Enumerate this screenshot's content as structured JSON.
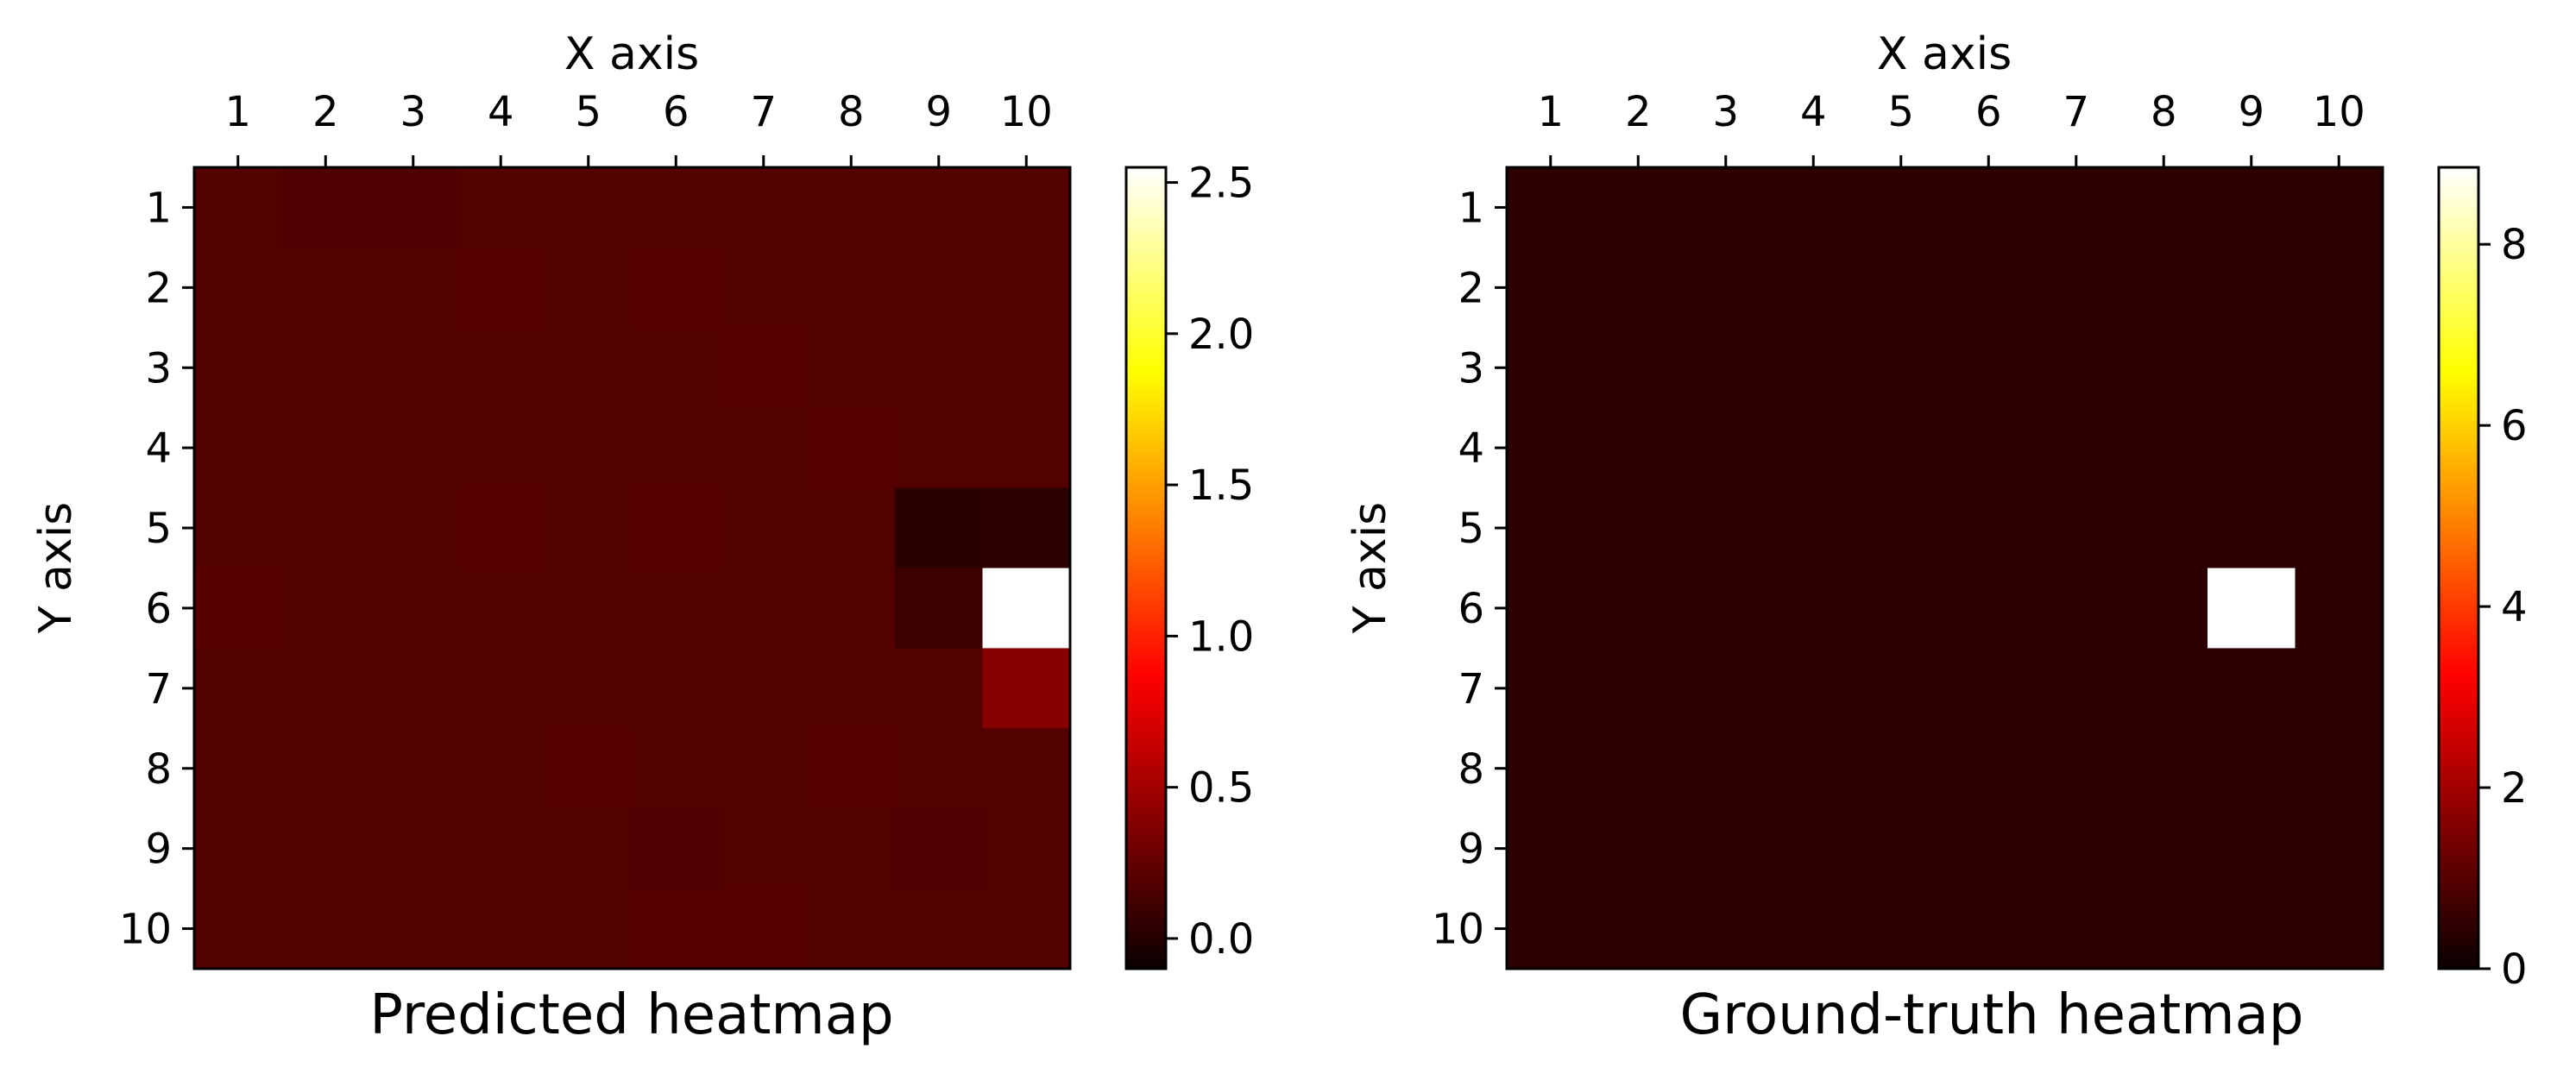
{
  "chart_data": [
    {
      "type": "heatmap",
      "title": "Predicted heatmap",
      "xlabel": "X axis",
      "ylabel": "Y axis",
      "x_ticks": [
        "1",
        "2",
        "3",
        "4",
        "5",
        "6",
        "7",
        "8",
        "9",
        "10"
      ],
      "y_ticks": [
        "1",
        "2",
        "3",
        "4",
        "5",
        "6",
        "7",
        "8",
        "9",
        "10"
      ],
      "colormap": "hot",
      "vmin": -0.1,
      "vmax": 2.55,
      "colorbar_ticks": [
        "0.0",
        "0.5",
        "1.0",
        "1.5",
        "2.0",
        "2.5"
      ],
      "colorbar_tick_values": [
        0.0,
        0.5,
        1.0,
        1.5,
        2.0,
        2.5
      ],
      "values": [
        [
          0.1,
          0.09,
          0.09,
          0.1,
          0.1,
          0.1,
          0.1,
          0.1,
          0.1,
          0.1
        ],
        [
          0.1,
          0.1,
          0.1,
          0.11,
          0.1,
          0.11,
          0.1,
          0.1,
          0.1,
          0.1
        ],
        [
          0.1,
          0.1,
          0.1,
          0.1,
          0.1,
          0.1,
          0.11,
          0.1,
          0.1,
          0.1
        ],
        [
          0.1,
          0.1,
          0.1,
          0.1,
          0.1,
          0.1,
          0.1,
          0.12,
          0.1,
          0.1
        ],
        [
          0.1,
          0.1,
          0.1,
          0.11,
          0.1,
          0.12,
          0.1,
          0.1,
          -0.05,
          -0.04
        ],
        [
          0.12,
          0.1,
          0.1,
          0.1,
          0.1,
          0.1,
          0.1,
          0.1,
          0.02,
          2.55
        ],
        [
          0.1,
          0.1,
          0.1,
          0.1,
          0.1,
          0.1,
          0.1,
          0.1,
          0.1,
          0.3
        ],
        [
          0.1,
          0.1,
          0.1,
          0.1,
          0.11,
          0.1,
          0.1,
          0.11,
          0.1,
          0.1
        ],
        [
          0.1,
          0.1,
          0.1,
          0.1,
          0.1,
          0.09,
          0.1,
          0.1,
          0.09,
          0.1
        ],
        [
          0.1,
          0.1,
          0.1,
          0.1,
          0.1,
          0.11,
          0.11,
          0.1,
          0.1,
          0.1
        ]
      ]
    },
    {
      "type": "heatmap",
      "title": "Ground-truth heatmap",
      "xlabel": "X axis",
      "ylabel": "Y axis",
      "x_ticks": [
        "1",
        "2",
        "3",
        "4",
        "5",
        "6",
        "7",
        "8",
        "9",
        "10"
      ],
      "y_ticks": [
        "1",
        "2",
        "3",
        "4",
        "5",
        "6",
        "7",
        "8",
        "9",
        "10"
      ],
      "colormap": "hot",
      "vmin": 0,
      "vmax": 8.85,
      "colorbar_ticks": [
        "0",
        "2",
        "4",
        "6",
        "8"
      ],
      "colorbar_tick_values": [
        0,
        2,
        4,
        6,
        8
      ],
      "values": [
        [
          0.2,
          0.2,
          0.2,
          0.2,
          0.2,
          0.2,
          0.2,
          0.2,
          0.2,
          0.2
        ],
        [
          0.2,
          0.2,
          0.2,
          0.2,
          0.2,
          0.2,
          0.2,
          0.2,
          0.2,
          0.2
        ],
        [
          0.2,
          0.2,
          0.2,
          0.2,
          0.2,
          0.2,
          0.2,
          0.2,
          0.2,
          0.2
        ],
        [
          0.2,
          0.2,
          0.2,
          0.2,
          0.2,
          0.2,
          0.2,
          0.2,
          0.2,
          0.2
        ],
        [
          0.2,
          0.2,
          0.2,
          0.2,
          0.2,
          0.2,
          0.2,
          0.2,
          0.2,
          0.2
        ],
        [
          0.2,
          0.2,
          0.2,
          0.2,
          0.2,
          0.2,
          0.2,
          0.2,
          8.85,
          0.2
        ],
        [
          0.2,
          0.2,
          0.2,
          0.2,
          0.2,
          0.2,
          0.2,
          0.2,
          0.2,
          0.2
        ],
        [
          0.2,
          0.2,
          0.2,
          0.2,
          0.2,
          0.2,
          0.2,
          0.2,
          0.2,
          0.2
        ],
        [
          0.2,
          0.2,
          0.2,
          0.2,
          0.2,
          0.2,
          0.2,
          0.2,
          0.2,
          0.2
        ],
        [
          0.2,
          0.2,
          0.2,
          0.2,
          0.2,
          0.2,
          0.2,
          0.2,
          0.2,
          0.2
        ]
      ]
    }
  ]
}
